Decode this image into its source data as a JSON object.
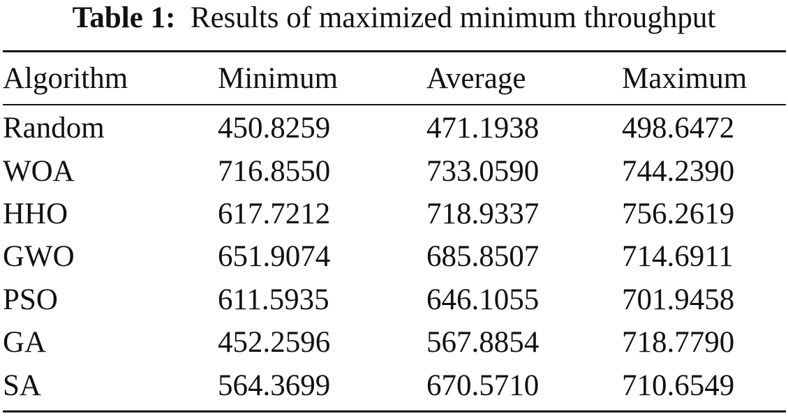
{
  "caption": {
    "label": "Table 1:",
    "text": "Results of maximized minimum throughput"
  },
  "table": {
    "columns": [
      "Algorithm",
      "Minimum",
      "Average",
      "Maximum"
    ],
    "rows": [
      [
        "Random",
        "450.8259",
        "471.1938",
        "498.6472"
      ],
      [
        "WOA",
        "716.8550",
        "733.0590",
        "744.2390"
      ],
      [
        "HHO",
        "617.7212",
        "718.9337",
        "756.2619"
      ],
      [
        "GWO",
        "651.9074",
        "685.8507",
        "714.6911"
      ],
      [
        "PSO",
        "611.5935",
        "646.1055",
        "701.9458"
      ],
      [
        "GA",
        "452.2596",
        "567.8854",
        "718.7790"
      ],
      [
        "SA",
        "564.3699",
        "670.5710",
        "710.6549"
      ]
    ]
  }
}
